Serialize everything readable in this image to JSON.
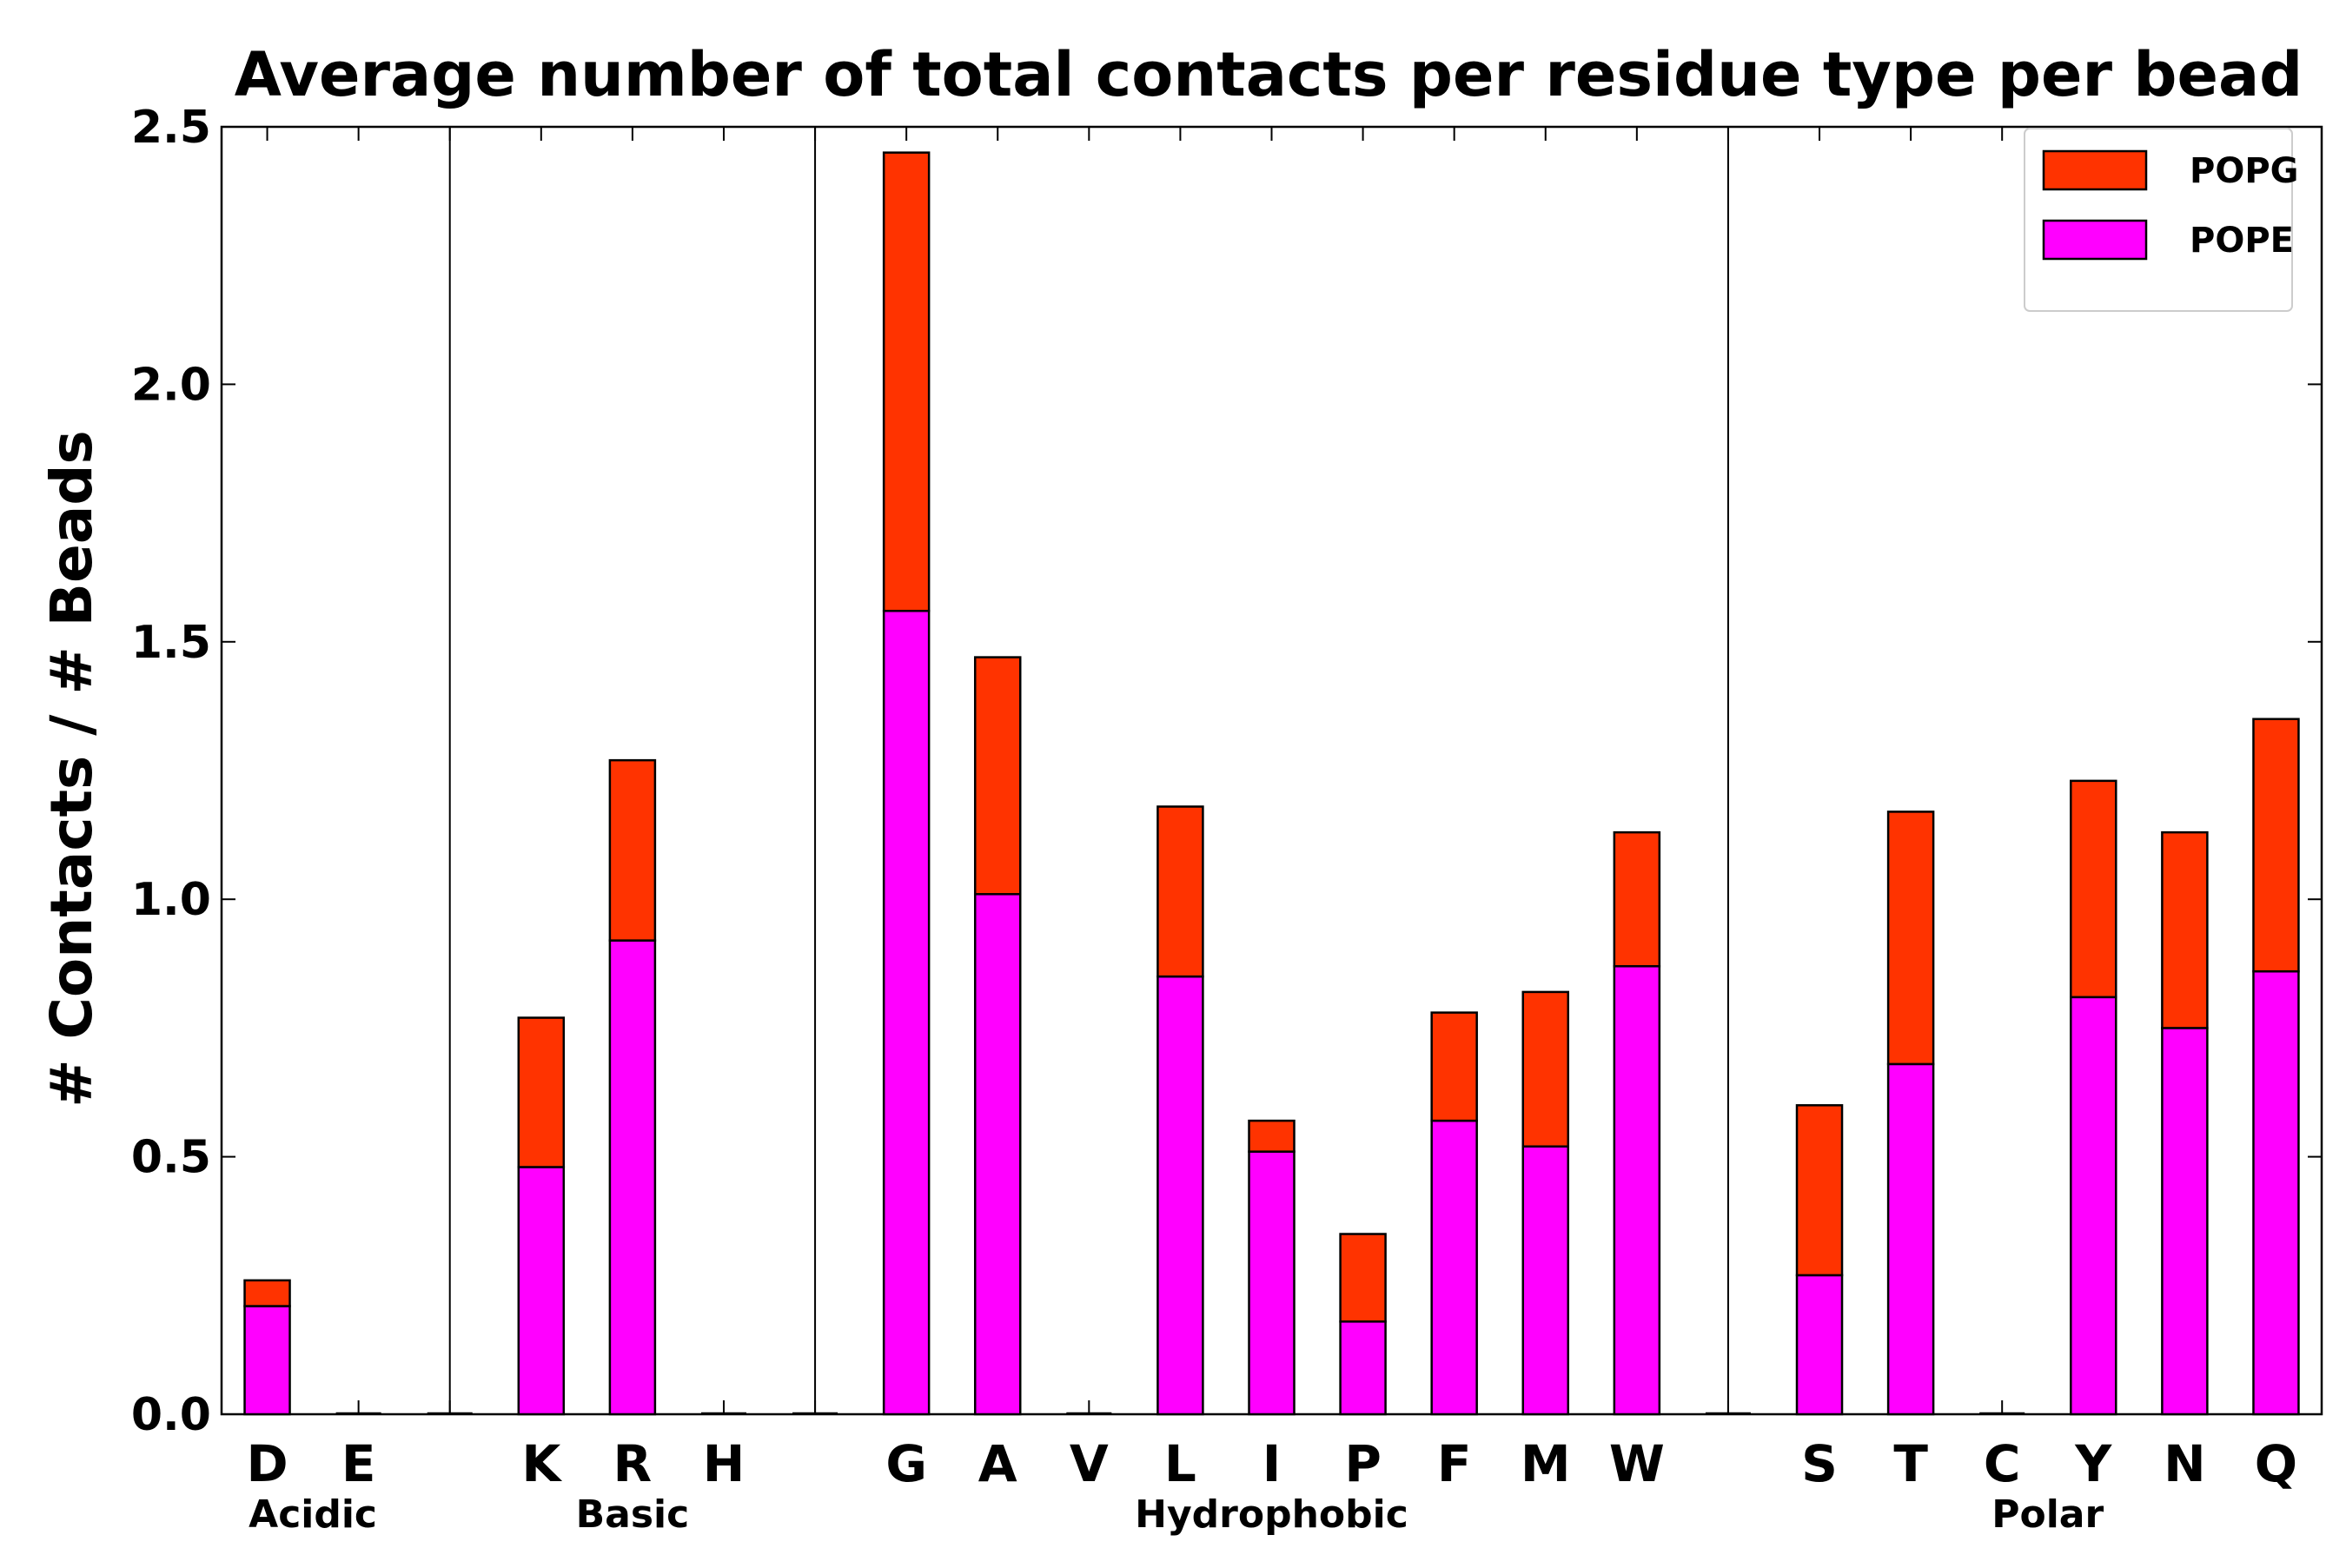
{
  "chart_data": {
    "type": "bar",
    "stacked": true,
    "title": "Average number of total contacts per residue type per bead",
    "xlabel": "",
    "ylabel": "# Contacts / # Beads",
    "ylim": [
      0,
      2.5
    ],
    "yticks": [
      "0.0",
      "0.5",
      "1.0",
      "1.5",
      "2.0",
      "2.5"
    ],
    "categories": [
      "D",
      "E",
      "",
      "K",
      "R",
      "H",
      "",
      "G",
      "A",
      "V",
      "L",
      "I",
      "P",
      "F",
      "M",
      "W",
      "",
      "S",
      "T",
      "C",
      "Y",
      "N",
      "Q"
    ],
    "series": [
      {
        "name": "POPE",
        "color": "#ff00ff",
        "values": [
          0.21,
          0,
          0,
          0.48,
          0.92,
          0,
          0,
          1.56,
          1.01,
          0,
          0.85,
          0.51,
          0.18,
          0.57,
          0.52,
          0.87,
          0,
          0.27,
          0.68,
          0,
          0.81,
          0.75,
          0.86
        ]
      },
      {
        "name": "POPG",
        "color": "#ff3300",
        "values": [
          0.05,
          0,
          0,
          0.29,
          0.35,
          0,
          0,
          0.89,
          0.46,
          0,
          0.33,
          0.06,
          0.17,
          0.21,
          0.3,
          0.26,
          0,
          0.33,
          0.49,
          0,
          0.42,
          0.38,
          0.49
        ]
      }
    ],
    "groups": [
      {
        "name": "Acidic",
        "start": 0,
        "end": 1
      },
      {
        "name": "Basic",
        "start": 3,
        "end": 5
      },
      {
        "name": "Hydrophobic",
        "start": 7,
        "end": 15
      },
      {
        "name": "Polar",
        "start": 17,
        "end": 22
      }
    ],
    "separators_after_index": [
      2,
      6,
      16
    ],
    "legend": {
      "position": "top-right",
      "entries": [
        "POPG",
        "POPE"
      ]
    }
  }
}
